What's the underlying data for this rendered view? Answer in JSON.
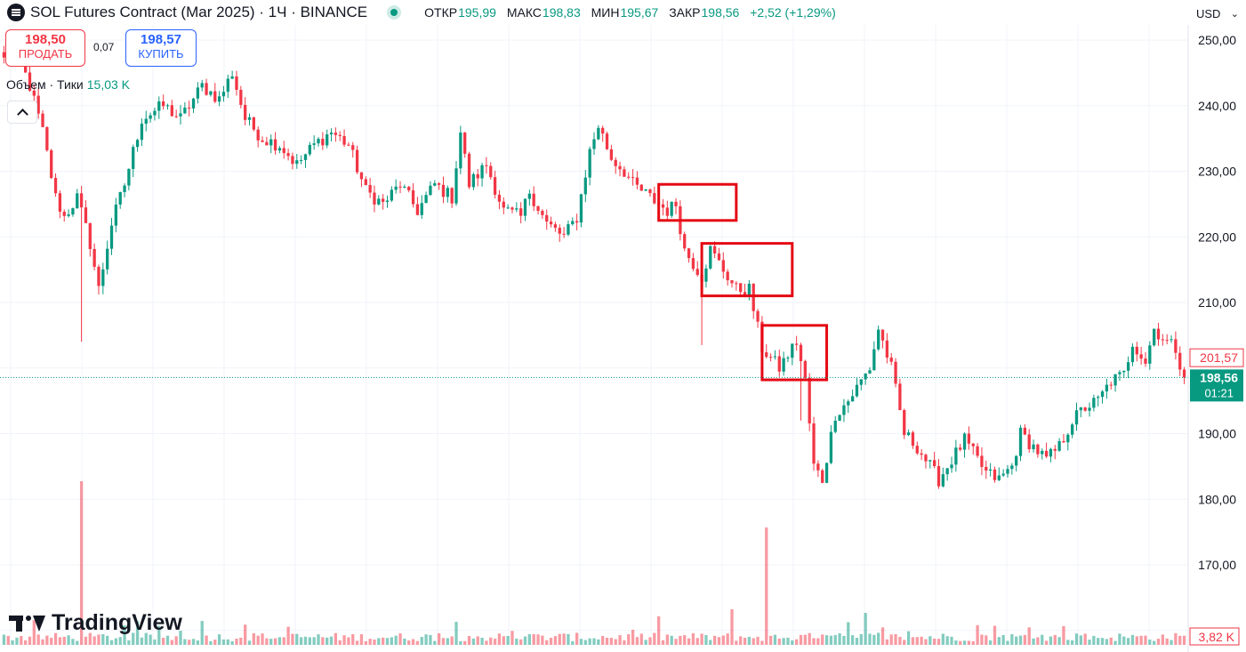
{
  "header": {
    "title": "SOL Futures Contract (Mar 2025) · 1Ч · BINANCE",
    "open_label": "ОТКР",
    "open_value": "195,99",
    "high_label": "МАКС",
    "high_value": "198,83",
    "low_label": "МИН",
    "low_value": "195,67",
    "close_label": "ЗАКР",
    "close_value": "198,56",
    "change": "+2,52 (+1,29%)",
    "currency": "USD"
  },
  "trade": {
    "sell_price": "198,50",
    "sell_label": "ПРОДАТЬ",
    "spread": "0,07",
    "buy_price": "198,57",
    "buy_label": "КУПИТЬ"
  },
  "volume_indicator": {
    "label": "Объем · Тики",
    "value": "15,03 K"
  },
  "brand": "TradingView",
  "colors": {
    "up": "#089981",
    "down": "#f23645",
    "highlight_box": "#e50914",
    "grid": "#f0f3fa"
  },
  "chart_data": {
    "type": "candlestick",
    "symbol": "SOL Futures Contract (Mar 2025)",
    "interval": "1Ч",
    "price_axis": {
      "ticks": [
        "250,00",
        "240,00",
        "230,00",
        "220,00",
        "210,00",
        "190,00",
        "180,00",
        "170,00"
      ],
      "range": [
        163,
        251.5
      ]
    },
    "last_price": {
      "value": 198.56,
      "label": "198,56",
      "countdown": "01:21"
    },
    "marked_price": {
      "value": 201.57,
      "label": "201,57"
    },
    "volume_scale_label": "3,82 K",
    "price_path": [
      [
        0,
        247
      ],
      [
        3,
        248
      ],
      [
        6,
        243
      ],
      [
        9,
        236
      ],
      [
        12,
        226
      ],
      [
        14,
        223
      ],
      [
        17,
        226
      ],
      [
        20,
        219
      ],
      [
        22,
        212
      ],
      [
        25,
        222
      ],
      [
        28,
        228
      ],
      [
        32,
        238
      ],
      [
        37,
        240
      ],
      [
        41,
        238
      ],
      [
        46,
        243
      ],
      [
        50,
        241
      ],
      [
        53,
        245
      ],
      [
        56,
        238
      ],
      [
        60,
        235
      ],
      [
        64,
        234
      ],
      [
        68,
        231
      ],
      [
        72,
        234
      ],
      [
        76,
        236
      ],
      [
        80,
        234
      ],
      [
        84,
        227
      ],
      [
        88,
        225
      ],
      [
        92,
        228
      ],
      [
        96,
        224
      ],
      [
        100,
        228
      ],
      [
        104,
        226
      ],
      [
        106,
        236
      ],
      [
        108,
        228
      ],
      [
        112,
        231
      ],
      [
        116,
        224
      ],
      [
        120,
        223
      ],
      [
        122,
        227
      ],
      [
        126,
        222
      ],
      [
        130,
        220
      ],
      [
        133,
        223
      ],
      [
        136,
        233
      ],
      [
        138,
        237
      ],
      [
        141,
        232
      ],
      [
        144,
        230
      ],
      [
        146,
        228
      ],
      [
        150,
        226
      ],
      [
        154,
        224
      ],
      [
        156,
        225
      ],
      [
        158,
        218
      ],
      [
        162,
        214
      ],
      [
        164,
        218
      ],
      [
        167,
        215
      ],
      [
        170,
        212
      ],
      [
        173,
        212
      ],
      [
        176,
        203
      ],
      [
        180,
        200
      ],
      [
        184,
        204
      ],
      [
        186,
        198
      ],
      [
        188,
        185
      ],
      [
        190,
        183
      ],
      [
        193,
        193
      ],
      [
        196,
        195
      ],
      [
        198,
        197
      ],
      [
        201,
        200
      ],
      [
        203,
        206
      ],
      [
        206,
        200
      ],
      [
        209,
        190
      ],
      [
        212,
        188
      ],
      [
        214,
        186
      ],
      [
        217,
        183
      ],
      [
        220,
        186
      ],
      [
        223,
        189
      ],
      [
        226,
        186
      ],
      [
        228,
        184
      ],
      [
        231,
        183
      ],
      [
        234,
        185
      ],
      [
        236,
        190
      ],
      [
        239,
        188
      ],
      [
        242,
        186
      ],
      [
        245,
        188
      ],
      [
        248,
        192
      ],
      [
        251,
        194
      ],
      [
        254,
        195
      ],
      [
        257,
        198
      ],
      [
        260,
        199
      ],
      [
        262,
        204
      ],
      [
        265,
        201
      ],
      [
        267,
        206
      ],
      [
        270,
        204
      ],
      [
        272,
        203
      ],
      [
        274,
        198.56
      ]
    ],
    "volume_spikes": [
      [
        18,
        2.3
      ],
      [
        177,
        1.65
      ],
      [
        169,
        0.5
      ],
      [
        200,
        0.45
      ]
    ],
    "highlight_boxes": [
      {
        "from_bar": 153,
        "to_bar": 169,
        "price_top": 228,
        "price_bottom": 222.5
      },
      {
        "from_bar": 163,
        "to_bar": 182,
        "price_top": 219,
        "price_bottom": 211
      },
      {
        "from_bar": 177,
        "to_bar": 190,
        "price_top": 206.5,
        "price_bottom": 198.2
      }
    ]
  }
}
